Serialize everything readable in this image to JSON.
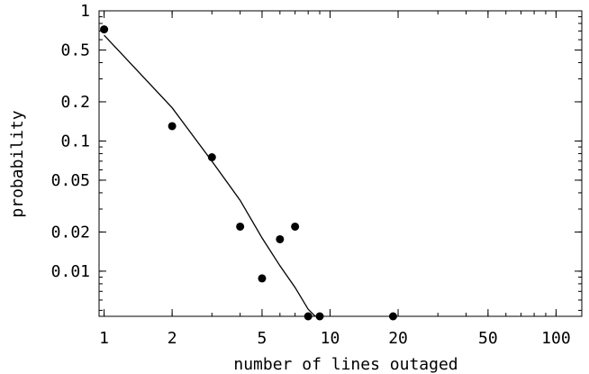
{
  "chart_data": {
    "type": "scatter",
    "xlabel": "number of lines outaged",
    "ylabel": "probability",
    "xscale": "log",
    "yscale": "log",
    "xlim": [
      0.95,
      130
    ],
    "ylim": [
      0.0045,
      1
    ],
    "grid": false,
    "x_ticks": [
      {
        "value": 1,
        "label": "1"
      },
      {
        "value": 2,
        "label": "2"
      },
      {
        "value": 5,
        "label": "5"
      },
      {
        "value": 10,
        "label": "10"
      },
      {
        "value": 20,
        "label": "20"
      },
      {
        "value": 50,
        "label": "50"
      },
      {
        "value": 100,
        "label": "100"
      }
    ],
    "y_ticks": [
      {
        "value": 1,
        "label": "1"
      },
      {
        "value": 0.5,
        "label": "0.5"
      },
      {
        "value": 0.2,
        "label": "0.2"
      },
      {
        "value": 0.1,
        "label": "0.1"
      },
      {
        "value": 0.05,
        "label": "0.05"
      },
      {
        "value": 0.02,
        "label": "0.02"
      },
      {
        "value": 0.01,
        "label": "0.01"
      }
    ],
    "series": [
      {
        "kind": "points",
        "color": "#000000",
        "x": [
          1,
          2,
          3,
          4,
          5,
          6,
          7,
          8,
          9,
          19
        ],
        "y": [
          0.72,
          0.13,
          0.075,
          0.022,
          0.0088,
          0.0176,
          0.022,
          0.0045,
          0.0045,
          0.0045
        ]
      },
      {
        "kind": "line",
        "color": "#000000",
        "x": [
          1,
          2,
          3,
          4,
          5,
          6,
          7,
          8,
          8.6
        ],
        "y": [
          0.65,
          0.18,
          0.07,
          0.035,
          0.018,
          0.011,
          0.0075,
          0.0051,
          0.0045
        ]
      }
    ]
  }
}
